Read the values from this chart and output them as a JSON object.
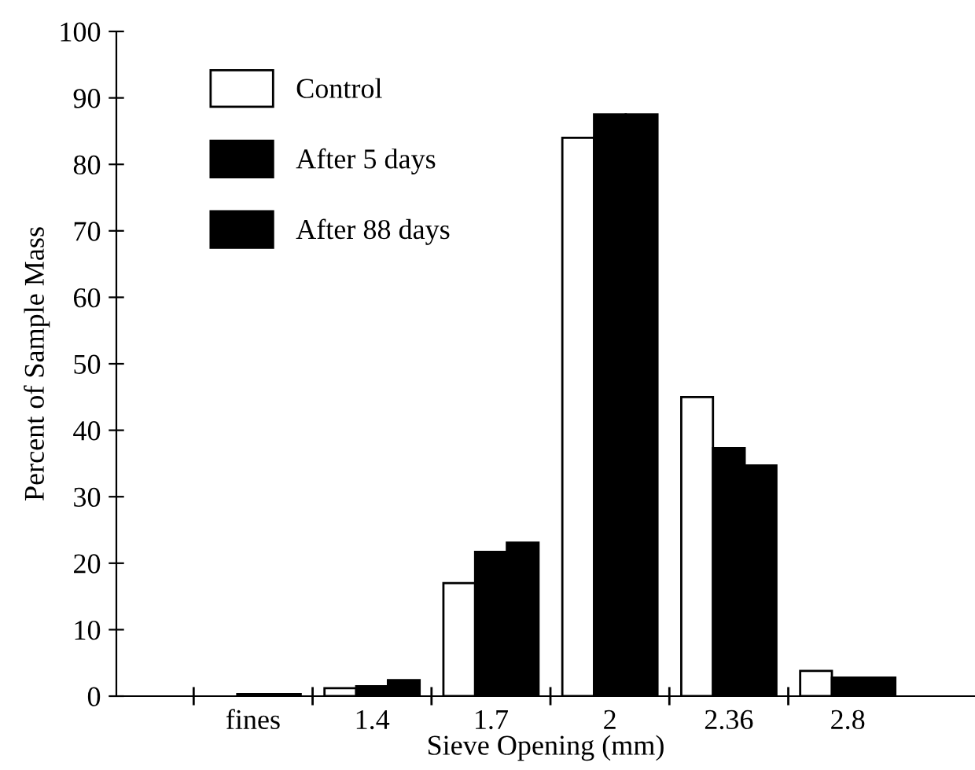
{
  "chart_data": {
    "type": "bar",
    "xlabel": "Sieve Opening (mm)",
    "ylabel": "Percent of Sample Mass",
    "categories": [
      "fines",
      "1.4",
      "1.7",
      "2",
      "2.36",
      "2.8"
    ],
    "series": [
      {
        "name": "Control",
        "color": "#ffffff",
        "values": [
          null,
          1.2,
          17,
          84,
          45,
          3.8
        ]
      },
      {
        "name": "After 5 days",
        "color": "#000000",
        "values": [
          0.3,
          1.5,
          21.7,
          87.5,
          37.3,
          2.8
        ]
      },
      {
        "name": "After 88 days",
        "color": "#000000",
        "values": [
          0.3,
          2.4,
          23.1,
          87.5,
          34.7,
          2.8
        ]
      }
    ],
    "ylim": [
      0,
      100
    ],
    "yticks": [
      0,
      10,
      20,
      30,
      40,
      50,
      60,
      70,
      80,
      90,
      100
    ],
    "grid": false,
    "legend": "top left"
  }
}
